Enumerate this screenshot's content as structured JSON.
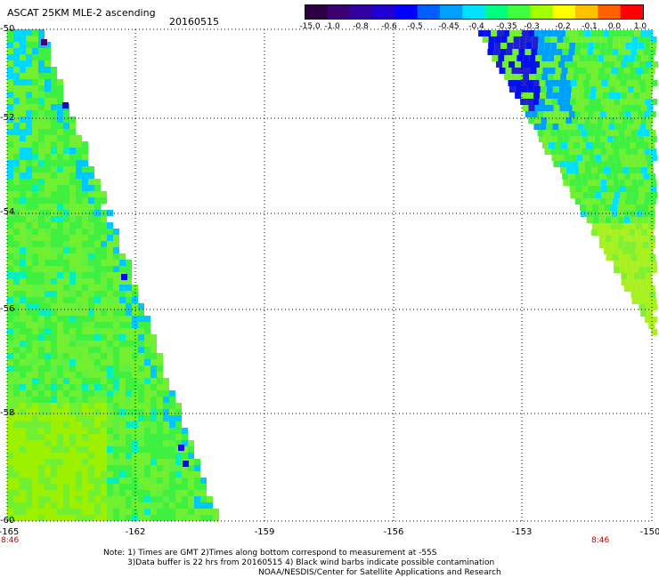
{
  "header": {
    "title": "ASCAT 25KM MLE-2 ascending",
    "date": "20160515"
  },
  "colorbar": {
    "labels": [
      "-15.0",
      "-1.0",
      "-0.8",
      "-0.6",
      "-0.5",
      "-0.45",
      "-0.4",
      "-0.35",
      "-0.3",
      "-0.2",
      "-0.1",
      "0.0",
      "1.0"
    ],
    "colors": [
      "#2a0040",
      "#3a0070",
      "#3000a0",
      "#2000d0",
      "#0000ff",
      "#0060ff",
      "#00a0ff",
      "#00e0ff",
      "#00ff80",
      "#40ff40",
      "#a0ff00",
      "#ffff00",
      "#ffc000",
      "#ff6000",
      "#ff0000"
    ]
  },
  "axes": {
    "x_ticks": [
      "-165",
      "-162",
      "-159",
      "-156",
      "-153",
      "-150"
    ],
    "y_ticks": [
      "-50",
      "-52",
      "-54",
      "-56",
      "-58",
      "-60"
    ],
    "time_left": "8:46",
    "time_right": "8:46"
  },
  "notes": {
    "line1": "Note: 1) Times are GMT 2)Times along bottom correspond to measurement at -55S",
    "line2": "3)Data buffer is 22 hrs from 20160515 4) Black wind barbs indicate possible contamination",
    "line3": "NOAA/NESDIS/Center for Satellite Applications and Research"
  }
}
